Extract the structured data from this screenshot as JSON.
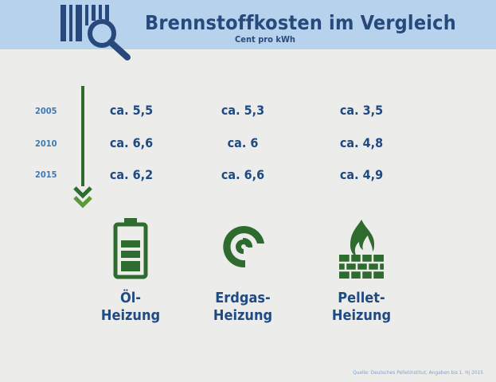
{
  "header": {
    "title": "Brennstoffkosten im Vergleich",
    "subtitle": "Cent pro kWh"
  },
  "chart_data": {
    "type": "table",
    "title": "Brennstoffkosten im Vergleich",
    "subtitle": "Cent pro kWh",
    "years": [
      "2005",
      "2010",
      "2015"
    ],
    "fuels": [
      {
        "name_line1": "Öl-",
        "name_line2": "Heizung",
        "icon": "battery-icon",
        "values": [
          5.5,
          6.6,
          6.2
        ],
        "labels": [
          "ca. 5,5",
          "ca. 6,6",
          "ca. 6,2"
        ]
      },
      {
        "name_line1": "Erdgas-",
        "name_line2": "Heizung",
        "icon": "gas-swirl-icon",
        "values": [
          5.3,
          6,
          6.6
        ],
        "labels": [
          "ca. 5,3",
          "ca. 6",
          "ca. 6,6"
        ]
      },
      {
        "name_line1": "Pellet-",
        "name_line2": "Heizung",
        "icon": "fire-brick-icon",
        "values": [
          3.5,
          4.8,
          4.9
        ],
        "labels": [
          "ca. 3,5",
          "ca. 4,8",
          "ca. 4,9"
        ]
      }
    ],
    "source": "Quelle: Deutsches Pelletinstitut; Angaben bis 1. Hj 2015"
  },
  "colors": {
    "header_bg": "#b7d2ec",
    "title": "#27497c",
    "value_text": "#1f4a82",
    "year_text": "#3f79b2",
    "icon_green": "#2e6b2e",
    "page_bg": "#ececeb"
  }
}
